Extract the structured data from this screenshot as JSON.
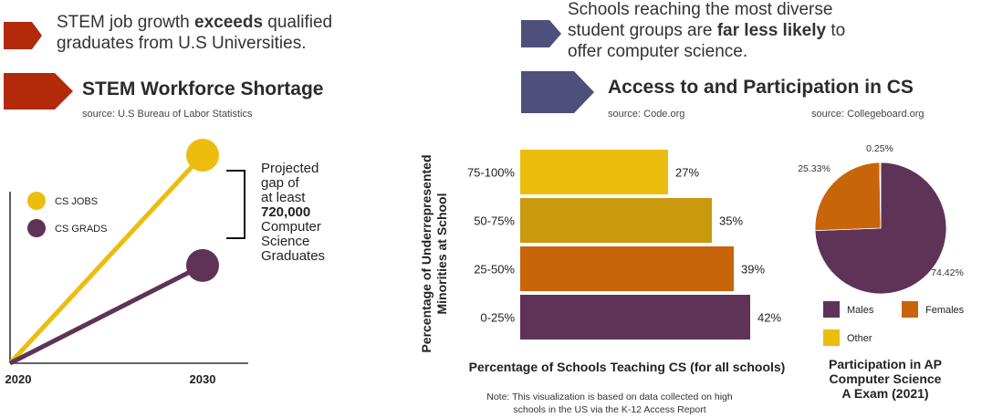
{
  "left": {
    "headline_pre": "STEM job growth ",
    "headline_bold": "exceeds",
    "headline_post": " qualified",
    "headline_line2": "graduates from U.S Universities.",
    "section_title": "STEM Workforce Shortage",
    "source": "source: U.S Bureau of Labor Statistics",
    "gap_lines": [
      "Projected",
      "gap of",
      "at least"
    ],
    "gap_bold": "720,000",
    "gap_lines2": [
      "Computer",
      "Science",
      "Graduates"
    ],
    "colors": {
      "arrow": "#b22a0a",
      "jobs": "#ecbd0e",
      "grads": "#5e3357"
    }
  },
  "right": {
    "headline_line1": "Schools reaching the most diverse",
    "headline_pre": "student groups are ",
    "headline_bold": "far less likely",
    "headline_post": " to",
    "headline_line3": "offer computer science.",
    "section_title": "Access to and Participation in CS",
    "source_left": "source: Code.org",
    "source_right": "source: Collegeboard.org",
    "note_line1": "Note: This visualization is based on data collected on high",
    "note_line2": "schools in the US via the K-12 Access Report",
    "pie_title": [
      "Participation in AP",
      "Computer Science",
      "A Exam (2021)"
    ],
    "colors": {
      "arrow": "#4f4f7c"
    }
  },
  "chart_data": [
    {
      "type": "line",
      "x": [
        "2020",
        "2030"
      ],
      "series": [
        {
          "name": "CS JOBS",
          "values": [
            0,
            100
          ],
          "color": "#ecbd0e"
        },
        {
          "name": "CS GRADS",
          "values": [
            0,
            47
          ],
          "color": "#5e3357"
        }
      ],
      "ylim": [
        0,
        100
      ]
    },
    {
      "type": "bar",
      "orientation": "horizontal",
      "categories": [
        "75-100%",
        "50-75%",
        "25-50%",
        "0-25%"
      ],
      "values": [
        27,
        35,
        39,
        42
      ],
      "value_labels": [
        "27%",
        "35%",
        "39%",
        "42%"
      ],
      "colors": [
        "#ecbd0e",
        "#c99a0e",
        "#c8650a",
        "#5e3357"
      ],
      "xlabel": "Percentage of Schools Teaching CS (for all schools)",
      "ylabel": "Percentage of Underrepresented Minorities at School",
      "xlim": [
        0,
        42
      ]
    },
    {
      "type": "pie",
      "labels": [
        "Males",
        "Females",
        "Other"
      ],
      "values": [
        74.42,
        25.33,
        0.25
      ],
      "value_labels": [
        "74.42%",
        "25.33%",
        "0.25%"
      ],
      "colors": [
        "#5e3357",
        "#c8650a",
        "#ecbd0e"
      ],
      "legend": "bottom"
    }
  ]
}
